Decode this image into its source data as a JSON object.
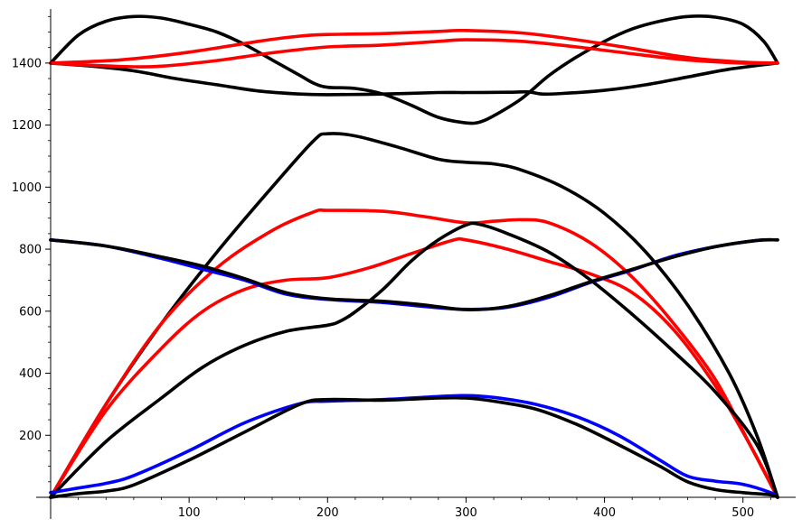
{
  "chart_data": {
    "type": "line",
    "title": "",
    "xlabel": "",
    "ylabel": "",
    "xlim": [
      0,
      525
    ],
    "ylim": [
      0,
      1580
    ],
    "grid": false,
    "legend": "none",
    "x_ticks": [
      100,
      200,
      300,
      400,
      500
    ],
    "y_ticks": [
      200,
      400,
      600,
      800,
      1000,
      1200,
      1400
    ],
    "colors": {
      "black": "#000000",
      "red": "#ff0000",
      "blue": "#0000ff"
    },
    "series": [
      {
        "color": "black",
        "points": [
          [
            0,
            1400
          ],
          [
            20,
            1490
          ],
          [
            40,
            1535
          ],
          [
            60,
            1550
          ],
          [
            80,
            1545
          ],
          [
            100,
            1525
          ],
          [
            120,
            1500
          ],
          [
            140,
            1460
          ],
          [
            160,
            1410
          ],
          [
            180,
            1360
          ],
          [
            190,
            1335
          ],
          [
            200,
            1322
          ],
          [
            220,
            1318
          ],
          [
            240,
            1300
          ],
          [
            260,
            1265
          ],
          [
            280,
            1225
          ],
          [
            300,
            1207
          ],
          [
            310,
            1210
          ],
          [
            320,
            1230
          ],
          [
            340,
            1285
          ],
          [
            360,
            1360
          ],
          [
            380,
            1420
          ],
          [
            400,
            1470
          ],
          [
            420,
            1510
          ],
          [
            440,
            1535
          ],
          [
            460,
            1550
          ],
          [
            480,
            1548
          ],
          [
            500,
            1525
          ],
          [
            515,
            1470
          ],
          [
            525,
            1400
          ]
        ]
      },
      {
        "color": "black",
        "points": [
          [
            0,
            1400
          ],
          [
            30,
            1390
          ],
          [
            60,
            1375
          ],
          [
            90,
            1350
          ],
          [
            120,
            1330
          ],
          [
            150,
            1310
          ],
          [
            180,
            1300
          ],
          [
            200,
            1298
          ],
          [
            240,
            1300
          ],
          [
            280,
            1305
          ],
          [
            300,
            1305
          ],
          [
            330,
            1306
          ],
          [
            345,
            1307
          ],
          [
            355,
            1300
          ],
          [
            370,
            1302
          ],
          [
            400,
            1312
          ],
          [
            430,
            1330
          ],
          [
            460,
            1355
          ],
          [
            490,
            1380
          ],
          [
            525,
            1400
          ]
        ]
      },
      {
        "color": "red",
        "points": [
          [
            0,
            1400
          ],
          [
            50,
            1410
          ],
          [
            100,
            1435
          ],
          [
            150,
            1470
          ],
          [
            180,
            1487
          ],
          [
            200,
            1492
          ],
          [
            240,
            1495
          ],
          [
            280,
            1502
          ],
          [
            300,
            1505
          ],
          [
            340,
            1497
          ],
          [
            380,
            1475
          ],
          [
            420,
            1447
          ],
          [
            460,
            1418
          ],
          [
            500,
            1403
          ],
          [
            525,
            1400
          ]
        ]
      },
      {
        "color": "red",
        "points": [
          [
            0,
            1400
          ],
          [
            30,
            1393
          ],
          [
            60,
            1388
          ],
          [
            80,
            1390
          ],
          [
            120,
            1408
          ],
          [
            160,
            1433
          ],
          [
            200,
            1452
          ],
          [
            240,
            1458
          ],
          [
            280,
            1470
          ],
          [
            300,
            1475
          ],
          [
            340,
            1470
          ],
          [
            380,
            1452
          ],
          [
            420,
            1430
          ],
          [
            460,
            1410
          ],
          [
            500,
            1400
          ],
          [
            525,
            1400
          ]
        ]
      },
      {
        "color": "black",
        "points": [
          [
            0,
            0
          ],
          [
            40,
            300
          ],
          [
            80,
            560
          ],
          [
            120,
            790
          ],
          [
            160,
            1000
          ],
          [
            190,
            1150
          ],
          [
            200,
            1172
          ],
          [
            220,
            1165
          ],
          [
            250,
            1130
          ],
          [
            280,
            1090
          ],
          [
            300,
            1080
          ],
          [
            320,
            1075
          ],
          [
            340,
            1055
          ],
          [
            370,
            1000
          ],
          [
            400,
            915
          ],
          [
            430,
            790
          ],
          [
            460,
            620
          ],
          [
            490,
            400
          ],
          [
            510,
            200
          ],
          [
            525,
            0
          ]
        ]
      },
      {
        "color": "red",
        "points": [
          [
            0,
            0
          ],
          [
            40,
            300
          ],
          [
            80,
            560
          ],
          [
            120,
            740
          ],
          [
            160,
            860
          ],
          [
            190,
            920
          ],
          [
            200,
            925
          ],
          [
            240,
            922
          ],
          [
            270,
            905
          ],
          [
            300,
            885
          ],
          [
            320,
            890
          ],
          [
            340,
            895
          ],
          [
            360,
            885
          ],
          [
            390,
            820
          ],
          [
            420,
            710
          ],
          [
            450,
            560
          ],
          [
            480,
            380
          ],
          [
            505,
            170
          ],
          [
            525,
            0
          ]
        ]
      },
      {
        "color": "red",
        "points": [
          [
            0,
            0
          ],
          [
            40,
            280
          ],
          [
            80,
            480
          ],
          [
            110,
            600
          ],
          [
            140,
            670
          ],
          [
            170,
            700
          ],
          [
            200,
            708
          ],
          [
            230,
            740
          ],
          [
            260,
            785
          ],
          [
            290,
            828
          ],
          [
            300,
            830
          ],
          [
            330,
            800
          ],
          [
            360,
            760
          ],
          [
            390,
            720
          ],
          [
            420,
            660
          ],
          [
            450,
            540
          ],
          [
            480,
            360
          ],
          [
            505,
            170
          ],
          [
            525,
            0
          ]
        ]
      },
      {
        "color": "black",
        "points": [
          [
            0,
            0
          ],
          [
            40,
            180
          ],
          [
            80,
            320
          ],
          [
            110,
            420
          ],
          [
            140,
            490
          ],
          [
            170,
            535
          ],
          [
            200,
            555
          ],
          [
            210,
            570
          ],
          [
            220,
            598
          ],
          [
            240,
            670
          ],
          [
            260,
            760
          ],
          [
            280,
            830
          ],
          [
            300,
            878
          ],
          [
            310,
            880
          ],
          [
            330,
            850
          ],
          [
            360,
            790
          ],
          [
            390,
            700
          ],
          [
            420,
            590
          ],
          [
            450,
            470
          ],
          [
            480,
            340
          ],
          [
            510,
            170
          ],
          [
            525,
            0
          ]
        ]
      },
      {
        "color": "blue",
        "points": [
          [
            0,
            830
          ],
          [
            40,
            810
          ],
          [
            80,
            770
          ],
          [
            110,
            735
          ],
          [
            140,
            700
          ],
          [
            170,
            655
          ],
          [
            200,
            638
          ],
          [
            240,
            628
          ],
          [
            270,
            615
          ],
          [
            300,
            606
          ],
          [
            330,
            613
          ],
          [
            360,
            645
          ],
          [
            390,
            693
          ],
          [
            420,
            733
          ],
          [
            450,
            778
          ],
          [
            480,
            808
          ],
          [
            510,
            828
          ],
          [
            525,
            830
          ]
        ]
      },
      {
        "color": "black",
        "points": [
          [
            0,
            830
          ],
          [
            40,
            810
          ],
          [
            80,
            775
          ],
          [
            110,
            745
          ],
          [
            140,
            705
          ],
          [
            170,
            660
          ],
          [
            200,
            640
          ],
          [
            240,
            632
          ],
          [
            270,
            620
          ],
          [
            300,
            605
          ],
          [
            330,
            615
          ],
          [
            360,
            650
          ],
          [
            390,
            695
          ],
          [
            420,
            735
          ],
          [
            450,
            775
          ],
          [
            480,
            808
          ],
          [
            510,
            828
          ],
          [
            525,
            830
          ]
        ]
      },
      {
        "color": "blue",
        "points": [
          [
            0,
            15
          ],
          [
            20,
            30
          ],
          [
            40,
            45
          ],
          [
            60,
            70
          ],
          [
            100,
            150
          ],
          [
            140,
            240
          ],
          [
            180,
            302
          ],
          [
            200,
            310
          ],
          [
            240,
            315
          ],
          [
            280,
            325
          ],
          [
            300,
            328
          ],
          [
            320,
            322
          ],
          [
            350,
            300
          ],
          [
            380,
            260
          ],
          [
            410,
            200
          ],
          [
            440,
            120
          ],
          [
            460,
            68
          ],
          [
            480,
            52
          ],
          [
            500,
            42
          ],
          [
            520,
            15
          ],
          [
            525,
            0
          ]
        ]
      },
      {
        "color": "black",
        "points": [
          [
            0,
            0
          ],
          [
            20,
            12
          ],
          [
            40,
            20
          ],
          [
            60,
            40
          ],
          [
            100,
            120
          ],
          [
            140,
            210
          ],
          [
            180,
            300
          ],
          [
            200,
            315
          ],
          [
            240,
            313
          ],
          [
            280,
            320
          ],
          [
            300,
            320
          ],
          [
            320,
            310
          ],
          [
            350,
            285
          ],
          [
            380,
            235
          ],
          [
            410,
            170
          ],
          [
            440,
            100
          ],
          [
            460,
            50
          ],
          [
            480,
            25
          ],
          [
            500,
            15
          ],
          [
            520,
            8
          ],
          [
            525,
            0
          ]
        ]
      }
    ]
  }
}
